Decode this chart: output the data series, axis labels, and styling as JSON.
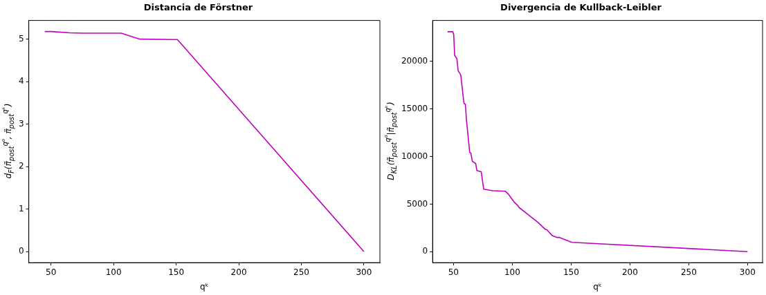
{
  "chart_data": [
    {
      "type": "line",
      "title": "Distancia de Förstner",
      "xlabel": "qᵏ",
      "ylabel": "d$_{F}$(π̃$_{post}$$^{q⁰}$, π̃$_{post}$$^{qᵏ}$)",
      "x": [
        45,
        50,
        65,
        75,
        106,
        121,
        151,
        300
      ],
      "series": [
        {
          "color": "#bf00bf",
          "values": [
            5.18,
            5.18,
            5.15,
            5.14,
            5.14,
            5.0,
            4.99,
            0
          ]
        }
      ],
      "xlim": [
        32.25,
        312.75
      ],
      "xticks": [
        50,
        100,
        150,
        200,
        250,
        300
      ],
      "ylim": [
        -0.26,
        5.44
      ],
      "yticks": [
        0,
        1,
        2,
        3,
        4,
        5
      ],
      "grid": false,
      "legend": false,
      "marker": "none",
      "line_style": "solid"
    },
    {
      "type": "line",
      "title": "Divergencia de Kullback-Leibler",
      "xlabel": "qᵏ",
      "ylabel": "D$_{KL}$(π̃$_{post}$$^{q⁰}$|π̃$_{post}$$^{qᵏ}$)",
      "x": [
        45,
        49.4,
        50.2,
        51,
        52.9,
        54,
        56.2,
        58.9,
        60.1,
        61.1,
        63.8,
        64.8,
        66,
        68.9,
        69.9,
        73.6,
        75.7,
        76.3,
        83.2,
        93.9,
        96.6,
        101.8,
        104.4,
        105.9,
        121.3,
        128,
        129.4,
        134,
        137.7,
        139.7,
        150.6,
        300
      ],
      "series": [
        {
          "color": "#bf00bf",
          "values": [
            23130,
            23130,
            22830,
            20650,
            20280,
            19020,
            18570,
            15600,
            15490,
            13770,
            10440,
            10360,
            9510,
            9260,
            8540,
            8390,
            6580,
            6560,
            6410,
            6360,
            6060,
            5180,
            4880,
            4630,
            3130,
            2350,
            2300,
            1680,
            1500,
            1500,
            980,
            0
          ]
        }
      ],
      "xlim": [
        32.25,
        312.75
      ],
      "xticks": [
        50,
        100,
        150,
        200,
        250,
        300
      ],
      "ylim": [
        -1160,
        24310
      ],
      "yticks": [
        0,
        5000,
        10000,
        15000,
        20000
      ],
      "grid": false,
      "legend": false,
      "marker": "none",
      "line_style": "solid"
    }
  ]
}
